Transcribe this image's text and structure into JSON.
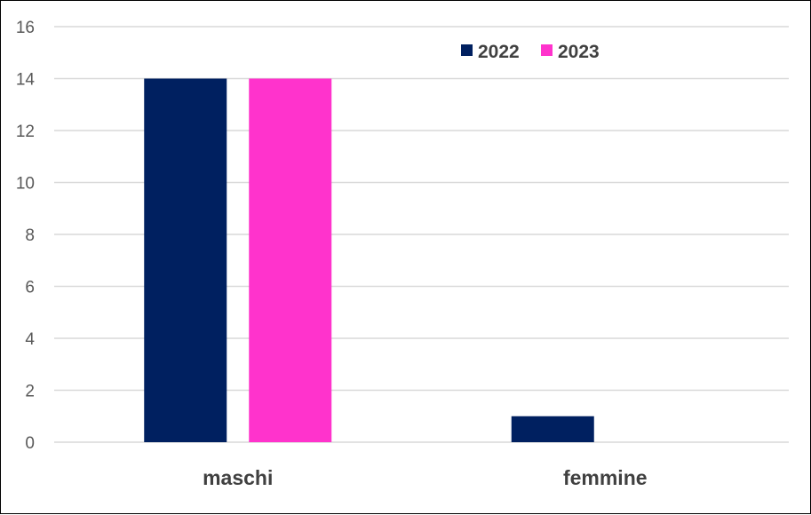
{
  "chart_data": {
    "type": "bar",
    "categories": [
      "maschi",
      "femmine"
    ],
    "series": [
      {
        "name": "2022",
        "values": [
          14,
          1
        ],
        "color": "#002060"
      },
      {
        "name": "2023",
        "values": [
          14,
          0
        ],
        "color": "#FF33CC"
      }
    ],
    "yticks": [
      "0",
      "2",
      "4",
      "6",
      "8",
      "10",
      "12",
      "14",
      "16"
    ],
    "ylim": [
      0,
      16
    ],
    "grid": true,
    "legend": "top-right"
  }
}
